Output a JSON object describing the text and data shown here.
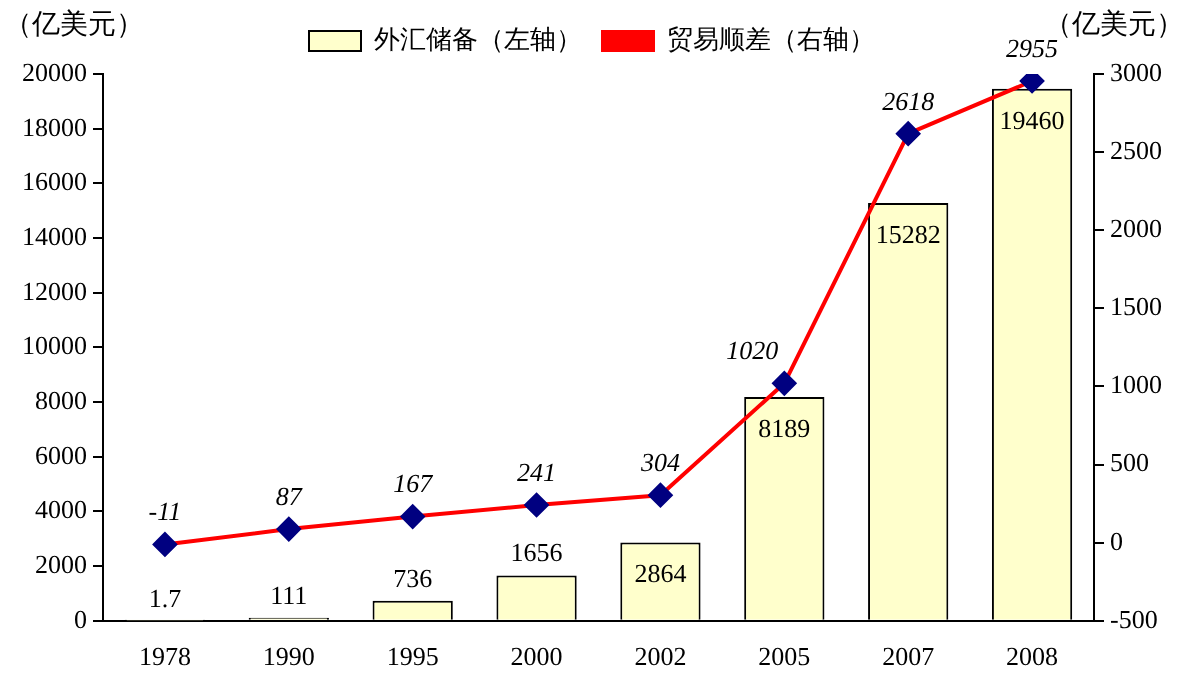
{
  "chart_data": {
    "type": "bar",
    "ylabel": "（亿美元）",
    "y2label": "（亿美元）",
    "categories": [
      "1978",
      "1990",
      "1995",
      "2000",
      "2002",
      "2005",
      "2007",
      "2008"
    ],
    "series": [
      {
        "name": "外汇储备（左轴）",
        "color": "#ffffcc",
        "values": [
          1.7,
          111,
          736,
          1656,
          2864,
          8189,
          15282,
          19460
        ]
      },
      {
        "name": "贸易顺差（右轴）",
        "type": "line",
        "axis": "y2",
        "color": "#ff0000",
        "marker": "diamond",
        "values": [
          -11,
          87,
          167,
          241,
          304,
          1020,
          2618,
          2955
        ]
      }
    ],
    "ylim": [
      0,
      20000
    ],
    "yticks": [
      0,
      2000,
      4000,
      6000,
      8000,
      10000,
      12000,
      14000,
      16000,
      18000,
      20000
    ],
    "y2lim": [
      -500,
      3000
    ],
    "y2ticks": [
      -500,
      0,
      500,
      1000,
      1500,
      2000,
      2500,
      3000
    ],
    "data_labels": true,
    "legend": "top",
    "grid": false
  }
}
